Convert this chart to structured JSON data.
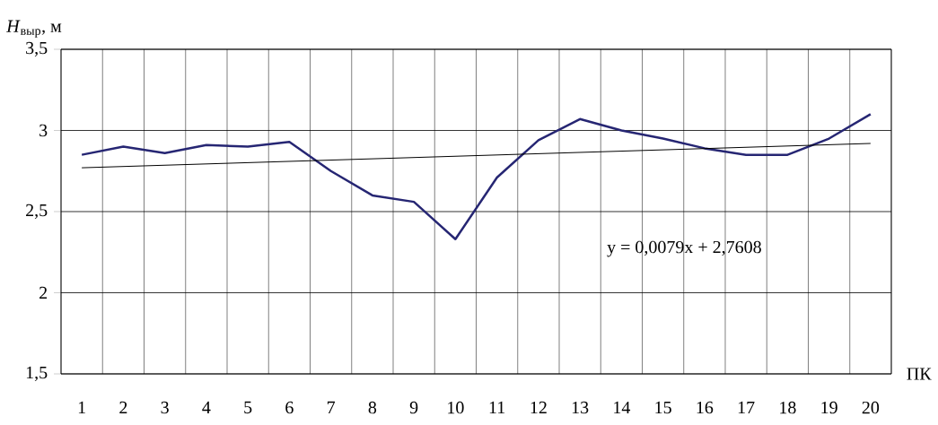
{
  "chart_data": {
    "type": "line",
    "categories": [
      "1",
      "2",
      "3",
      "4",
      "5",
      "6",
      "7",
      "8",
      "9",
      "10",
      "11",
      "12",
      "13",
      "14",
      "15",
      "16",
      "17",
      "18",
      "19",
      "20"
    ],
    "series": [
      {
        "color": "#262673",
        "values": [
          2.85,
          2.9,
          2.86,
          2.91,
          2.9,
          2.93,
          2.75,
          2.6,
          2.56,
          2.33,
          2.71,
          2.94,
          3.07,
          3.0,
          2.95,
          2.89,
          2.85,
          2.85,
          2.95,
          3.1
        ]
      },
      {
        "color": "#000000",
        "values": [
          2.77,
          null,
          null,
          null,
          null,
          null,
          null,
          null,
          null,
          null,
          null,
          null,
          null,
          null,
          null,
          null,
          null,
          null,
          null,
          2.92
        ]
      }
    ],
    "xlabel": "ПК",
    "ylabel": "*H*$_{выр}$, м",
    "ylim": [
      1.5,
      3.5
    ],
    "yticks": [
      {
        "value": 1.5,
        "label": "1,5"
      },
      {
        "value": 2,
        "label": "2"
      },
      {
        "value": 2.5,
        "label": "2,5"
      },
      {
        "value": 3,
        "label": "3"
      },
      {
        "value": 3.5,
        "label": "3,5"
      }
    ],
    "annotations": [
      "y = 0,0079x + 2,7608"
    ],
    "grid": true,
    "marker": "none",
    "line_style": "solid"
  }
}
